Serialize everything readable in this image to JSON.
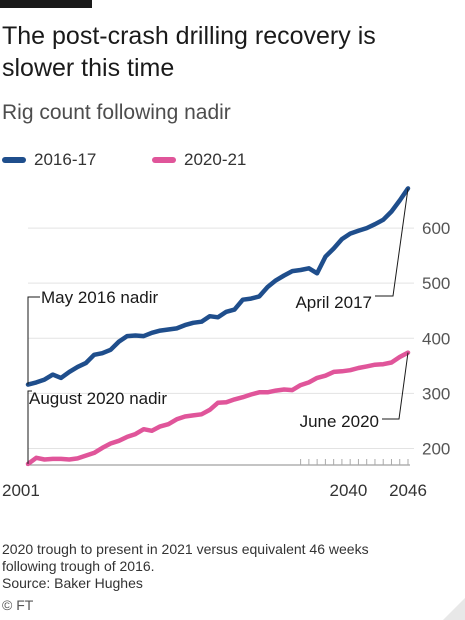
{
  "header": {
    "title": "The post-crash drilling recovery is slower this time",
    "subtitle": "Rig count following nadir"
  },
  "legend": [
    {
      "name": "2016-17",
      "color": "#1f4e8c"
    },
    {
      "name": "2020-21",
      "color": "#e0559a"
    }
  ],
  "chart_data": {
    "type": "line",
    "title": "The post-crash drilling recovery is slower this time",
    "subtitle": "Rig count following nadir",
    "xlabel": "",
    "ylabel": "",
    "y_axis_side": "right",
    "ylim": [
      170,
      680
    ],
    "yticks": [
      200,
      300,
      400,
      500,
      600
    ],
    "xlim": [
      0,
      46
    ],
    "x_tick_labels": [
      {
        "x": 0,
        "label": "2001"
      },
      {
        "x": 40,
        "label": "2040"
      },
      {
        "x": 46,
        "label": "2046"
      }
    ],
    "grid": true,
    "legend_position": "top-left",
    "series": [
      {
        "name": "2016-17",
        "color": "#1f4e8c",
        "x": [
          0,
          1,
          2,
          3,
          4,
          5,
          6,
          7,
          8,
          9,
          10,
          11,
          12,
          13,
          14,
          15,
          16,
          17,
          18,
          19,
          20,
          21,
          22,
          23,
          24,
          25,
          26,
          27,
          28,
          29,
          30,
          31,
          32,
          33,
          34,
          35,
          36,
          37,
          38,
          39,
          40,
          41,
          42,
          43,
          44,
          45,
          46
        ],
        "values": [
          316,
          320,
          325,
          334,
          328,
          339,
          348,
          355,
          370,
          373,
          379,
          394,
          404,
          405,
          404,
          410,
          414,
          416,
          418,
          424,
          428,
          430,
          440,
          438,
          448,
          452,
          470,
          472,
          476,
          493,
          505,
          514,
          522,
          524,
          527,
          518,
          548,
          563,
          580,
          590,
          595,
          600,
          607,
          615,
          630,
          650,
          672
        ]
      },
      {
        "name": "2020-21",
        "color": "#e0559a",
        "x": [
          0,
          1,
          2,
          3,
          4,
          5,
          6,
          7,
          8,
          9,
          10,
          11,
          12,
          13,
          14,
          15,
          16,
          17,
          18,
          19,
          20,
          21,
          22,
          23,
          24,
          25,
          26,
          27,
          28,
          29,
          30,
          31,
          32,
          33,
          34,
          35,
          36,
          37,
          38,
          39,
          40,
          41,
          42,
          43,
          44,
          45,
          46
        ],
        "values": [
          172,
          183,
          180,
          181,
          181,
          180,
          182,
          187,
          192,
          201,
          209,
          214,
          221,
          226,
          235,
          232,
          240,
          244,
          253,
          258,
          260,
          262,
          270,
          283,
          284,
          289,
          293,
          298,
          302,
          302,
          305,
          307,
          306,
          315,
          320,
          328,
          332,
          339,
          340,
          342,
          346,
          349,
          352,
          353,
          356,
          366,
          374
        ]
      }
    ],
    "annotations": [
      {
        "label": "May 2016 nadir",
        "series": "2016-17",
        "x": 0,
        "value": 316
      },
      {
        "label": "April 2017",
        "series": "2016-17",
        "x": 46,
        "value": 672
      },
      {
        "label": "August 2020 nadir",
        "series": "2020-21",
        "x": 0,
        "value": 172
      },
      {
        "label": "June 2020",
        "series": "2020-21",
        "x": 46,
        "value": 374
      }
    ]
  },
  "footer": {
    "note_line1": "2020 trough to present in 2021 versus equivalent 46 weeks",
    "note_line2": "following trough of 2016.",
    "source": "Source: Baker Hughes",
    "copyright": "© FT"
  }
}
